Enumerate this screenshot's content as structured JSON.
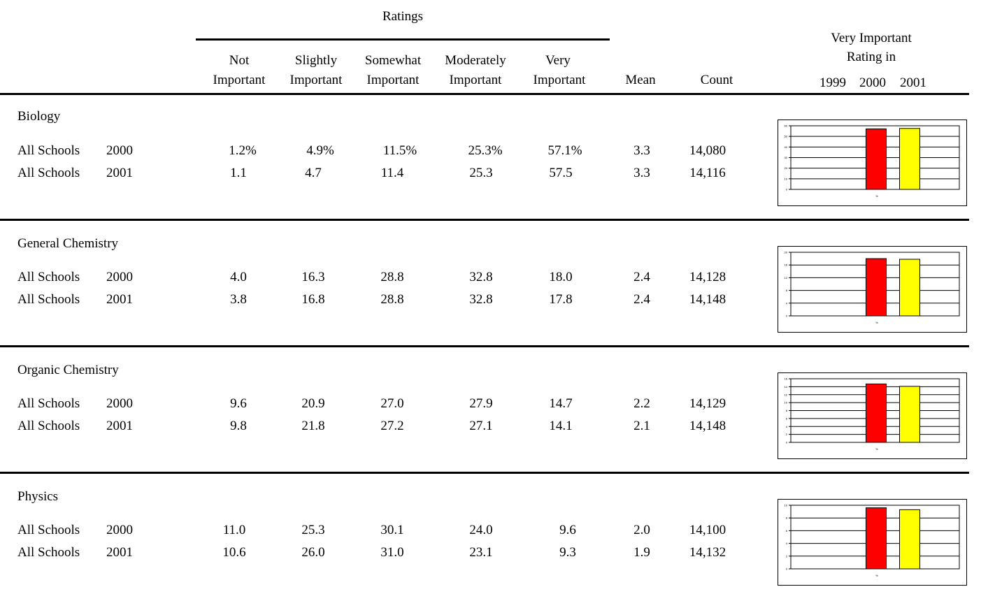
{
  "header": {
    "ratings_title": "Ratings",
    "columns": [
      {
        "line1": "Not",
        "line2": "Important"
      },
      {
        "line1": "Slightly",
        "line2": "Important"
      },
      {
        "line1": "Somewhat",
        "line2": "Important"
      },
      {
        "line1": "Moderately",
        "line2": "Important"
      },
      {
        "line1": "Very",
        "line2": "Important"
      }
    ],
    "mean": "Mean",
    "count": "Count",
    "vi_title_line1": "Very Important",
    "vi_title_line2": "Rating in",
    "years": [
      "1999",
      "2000",
      "2001"
    ]
  },
  "sections": [
    {
      "subject": "Biology",
      "rows": [
        {
          "label": "All Schools",
          "year": "2000",
          "values": [
            "1.2%",
            "4.9%",
            "11.5%",
            "25.3%",
            "57.1%"
          ],
          "mean": "3.3",
          "count": "14,080"
        },
        {
          "label": "All Schools",
          "year": "2001",
          "values": [
            "1.1",
            "4.7",
            "11.4",
            "25.3",
            "57.5"
          ],
          "mean": "3.3",
          "count": "14,116"
        }
      ]
    },
    {
      "subject": "General Chemistry",
      "rows": [
        {
          "label": "All Schools",
          "year": "2000",
          "values": [
            "4.0",
            "16.3",
            "28.8",
            "32.8",
            "18.0"
          ],
          "mean": "2.4",
          "count": "14,128"
        },
        {
          "label": "All Schools",
          "year": "2001",
          "values": [
            "3.8",
            "16.8",
            "28.8",
            "32.8",
            "17.8"
          ],
          "mean": "2.4",
          "count": "14,148"
        }
      ]
    },
    {
      "subject": "Organic Chemistry",
      "rows": [
        {
          "label": "All Schools",
          "year": "2000",
          "values": [
            "9.6",
            "20.9",
            "27.0",
            "27.9",
            "14.7"
          ],
          "mean": "2.2",
          "count": "14,129"
        },
        {
          "label": "All Schools",
          "year": "2001",
          "values": [
            "9.8",
            "21.8",
            "27.2",
            "27.1",
            "14.1"
          ],
          "mean": "2.1",
          "count": "14,148"
        }
      ]
    },
    {
      "subject": "Physics",
      "rows": [
        {
          "label": "All Schools",
          "year": "2000",
          "values": [
            "11.0",
            "25.3",
            "30.1",
            "24.0",
            "9.6"
          ],
          "mean": "2.0",
          "count": "14,100"
        },
        {
          "label": "All Schools",
          "year": "2001",
          "values": [
            "10.6",
            "26.0",
            "31.0",
            "23.1",
            "9.3"
          ],
          "mean": "1.9",
          "count": "14,132"
        }
      ]
    }
  ],
  "colors": {
    "bar_2000": "#ff0000",
    "bar_2001": "#ffff00"
  },
  "chart_data": [
    {
      "type": "bar",
      "categories": [
        "2000",
        "2001"
      ],
      "values": [
        57.1,
        57.5
      ],
      "ylim": [
        0,
        60
      ],
      "ticks": [
        0,
        10,
        20,
        30,
        40,
        50,
        60
      ],
      "grid": true
    },
    {
      "type": "bar",
      "categories": [
        "2000",
        "2001"
      ],
      "values": [
        18.0,
        17.8
      ],
      "ylim": [
        0,
        20
      ],
      "ticks": [
        0,
        4,
        8,
        12,
        16,
        20
      ],
      "grid": true
    },
    {
      "type": "bar",
      "categories": [
        "2000",
        "2001"
      ],
      "values": [
        14.7,
        14.1
      ],
      "ylim": [
        0,
        16
      ],
      "ticks": [
        0,
        2,
        4,
        6,
        8,
        10,
        12,
        14,
        16
      ],
      "grid": true
    },
    {
      "type": "bar",
      "categories": [
        "2000",
        "2001"
      ],
      "values": [
        9.6,
        9.3
      ],
      "ylim": [
        0,
        10
      ],
      "ticks": [
        0,
        2,
        4,
        6,
        8,
        10
      ],
      "grid": true
    }
  ]
}
